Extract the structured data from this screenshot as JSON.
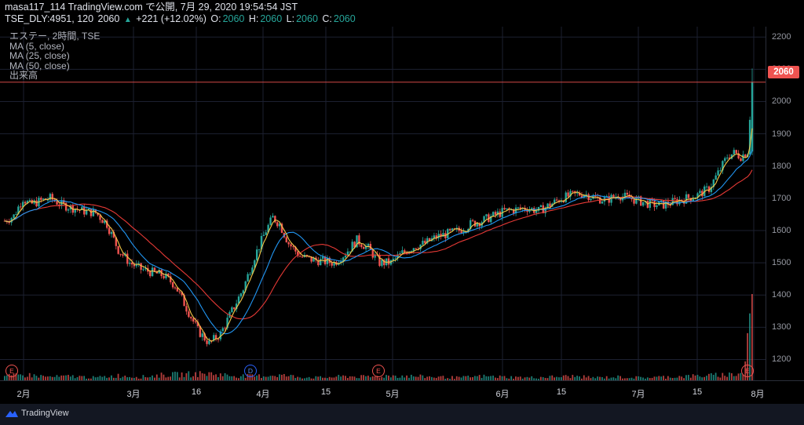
{
  "header": {
    "publish_line": "masa117_114 TradingView.com で公開, 7月 29, 2020 19:54:54 JST",
    "symbol": "TSE_DLY:4951, 120",
    "last": "2060",
    "change": "+221 (+12.02%)",
    "o_label": "O:",
    "o_value": "2060",
    "h_label": "H:",
    "h_value": "2060",
    "l_label": "L:",
    "l_value": "2060",
    "c_label": "C:",
    "c_value": "2060"
  },
  "legend": {
    "title": "エステー, 2時間, TSE",
    "ma5": "MA (5, close)",
    "ma25": "MA (25, close)",
    "ma50": "MA (50, close)",
    "volume": "出来高"
  },
  "price_badge": "2060",
  "price_ticks": [
    "2200",
    "2100",
    "2000",
    "1900",
    "1800",
    "1700",
    "1600",
    "1500",
    "1400",
    "1300",
    "1200"
  ],
  "time_ticks": [
    "2月",
    "3月",
    "16",
    "4月",
    "15",
    "5月",
    "6月",
    "15",
    "7月",
    "15",
    "8月"
  ],
  "events": [
    "E",
    "D",
    "E",
    "E"
  ],
  "footer": {
    "brand": "TradingView"
  },
  "colors": {
    "up": "#26a69a",
    "down": "#ef5350",
    "ma5": "#f7c948",
    "ma25": "#2196f3",
    "ma50": "#e53935",
    "last_price_line": "#ef5350"
  },
  "chart_data": {
    "type": "candlestick",
    "ylim": [
      1150,
      2220
    ],
    "series": [
      {
        "name": "MA (5, close)",
        "color": "#f7c948"
      },
      {
        "name": "MA (25, close)",
        "color": "#2196f3"
      },
      {
        "name": "MA (50, close)",
        "color": "#e53935"
      }
    ],
    "price_path": [
      [
        0,
        1630
      ],
      [
        4,
        1645
      ],
      [
        8,
        1700
      ],
      [
        11,
        1680
      ],
      [
        15,
        1690
      ],
      [
        20,
        1700
      ],
      [
        25,
        1680
      ],
      [
        30,
        1670
      ],
      [
        35,
        1660
      ],
      [
        40,
        1655
      ],
      [
        45,
        1620
      ],
      [
        50,
        1540
      ],
      [
        55,
        1500
      ],
      [
        60,
        1480
      ],
      [
        65,
        1470
      ],
      [
        70,
        1460
      ],
      [
        75,
        1430
      ],
      [
        80,
        1360
      ],
      [
        85,
        1290
      ],
      [
        90,
        1250
      ],
      [
        95,
        1280
      ],
      [
        100,
        1350
      ],
      [
        105,
        1420
      ],
      [
        110,
        1520
      ],
      [
        115,
        1600
      ],
      [
        118,
        1640
      ],
      [
        121,
        1620
      ],
      [
        125,
        1560
      ],
      [
        130,
        1520
      ],
      [
        135,
        1510
      ],
      [
        140,
        1505
      ],
      [
        145,
        1500
      ],
      [
        150,
        1530
      ],
      [
        155,
        1570
      ],
      [
        160,
        1545
      ],
      [
        165,
        1500
      ],
      [
        170,
        1500
      ],
      [
        175,
        1530
      ],
      [
        180,
        1550
      ],
      [
        185,
        1560
      ],
      [
        190,
        1580
      ],
      [
        195,
        1590
      ],
      [
        200,
        1600
      ],
      [
        205,
        1620
      ],
      [
        210,
        1630
      ],
      [
        215,
        1645
      ],
      [
        220,
        1660
      ],
      [
        225,
        1665
      ],
      [
        230,
        1670
      ],
      [
        235,
        1660
      ],
      [
        240,
        1680
      ],
      [
        245,
        1700
      ],
      [
        250,
        1710
      ],
      [
        255,
        1715
      ],
      [
        260,
        1700
      ],
      [
        265,
        1695
      ],
      [
        270,
        1710
      ],
      [
        275,
        1700
      ],
      [
        280,
        1690
      ],
      [
        285,
        1680
      ],
      [
        290,
        1680
      ],
      [
        295,
        1690
      ],
      [
        300,
        1700
      ],
      [
        305,
        1710
      ],
      [
        310,
        1730
      ],
      [
        315,
        1790
      ],
      [
        318,
        1830
      ],
      [
        321,
        1840
      ],
      [
        324,
        1830
      ],
      [
        327,
        1845
      ],
      [
        329,
        2060
      ]
    ],
    "volume_path": [
      [
        0,
        6
      ],
      [
        10,
        8
      ],
      [
        20,
        5
      ],
      [
        30,
        6
      ],
      [
        40,
        4
      ],
      [
        50,
        7
      ],
      [
        60,
        5
      ],
      [
        70,
        8
      ],
      [
        80,
        9
      ],
      [
        90,
        10
      ],
      [
        100,
        7
      ],
      [
        110,
        6
      ],
      [
        120,
        8
      ],
      [
        130,
        5
      ],
      [
        140,
        4
      ],
      [
        150,
        6
      ],
      [
        160,
        5
      ],
      [
        170,
        7
      ],
      [
        180,
        6
      ],
      [
        190,
        5
      ],
      [
        200,
        4
      ],
      [
        210,
        6
      ],
      [
        220,
        5
      ],
      [
        230,
        4
      ],
      [
        240,
        5
      ],
      [
        250,
        6
      ],
      [
        260,
        4
      ],
      [
        270,
        5
      ],
      [
        280,
        4
      ],
      [
        290,
        5
      ],
      [
        300,
        6
      ],
      [
        310,
        7
      ],
      [
        320,
        9
      ],
      [
        325,
        10
      ],
      [
        329,
        110
      ]
    ]
  }
}
